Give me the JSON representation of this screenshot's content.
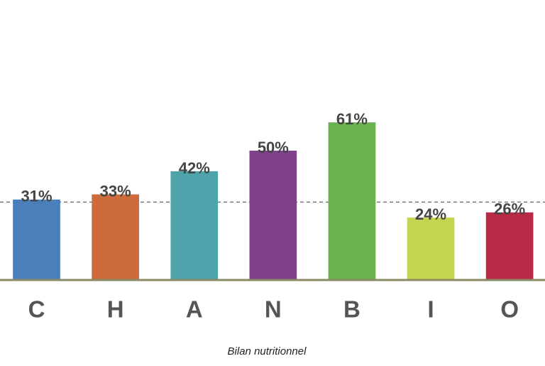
{
  "chart_data": {
    "type": "bar",
    "xlabel": "Bilan nutritionnel",
    "categories": [
      "C",
      "H",
      "A",
      "N",
      "B",
      "I",
      "O"
    ],
    "values": [
      31,
      33,
      42,
      50,
      61,
      24,
      26
    ],
    "value_labels": [
      "31%",
      "33%",
      "42%",
      "50%",
      "61%",
      "24%",
      "26%"
    ],
    "colors": [
      "#4a7fbc",
      "#cd6c3a",
      "#4fa3aa",
      "#7f418c",
      "#6ab150",
      "#c5d44f",
      "#b72945"
    ],
    "reference_line": 30,
    "ylim": [
      0,
      100
    ]
  }
}
